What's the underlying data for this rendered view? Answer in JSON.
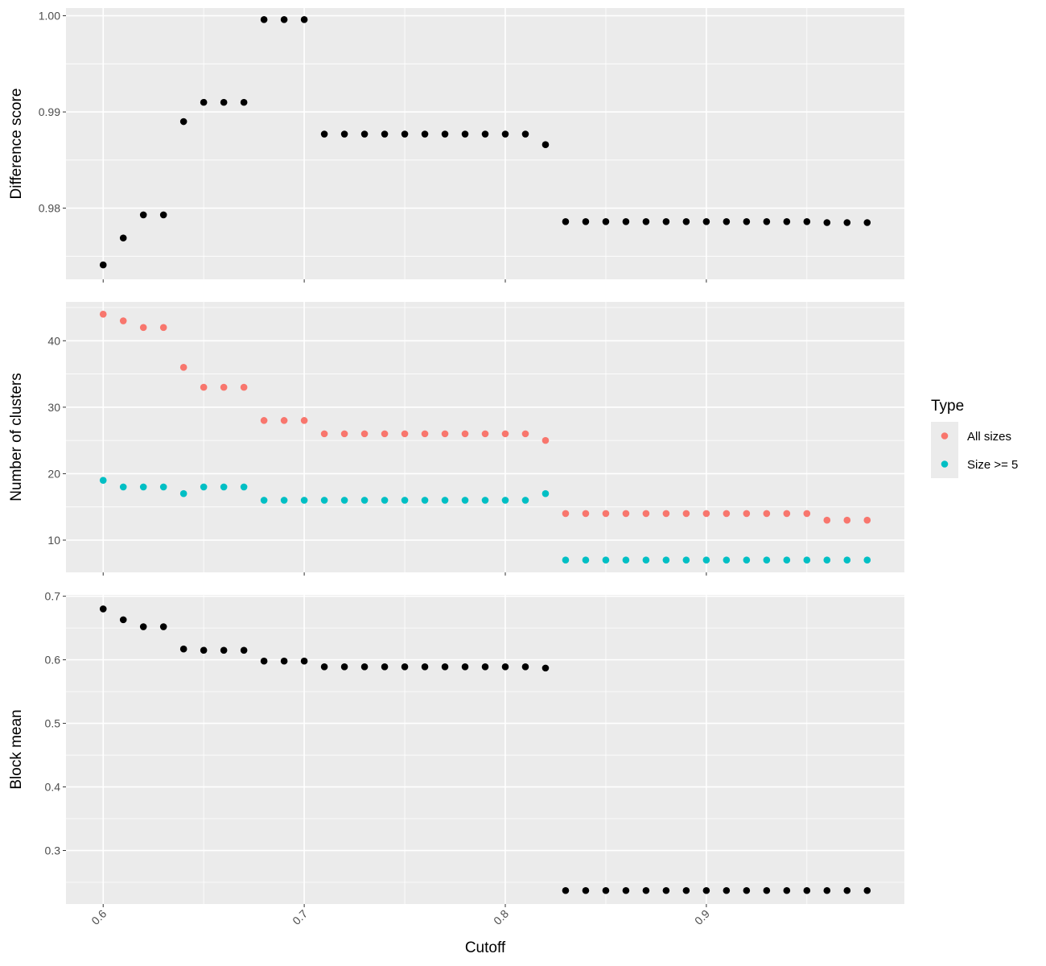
{
  "chart_data": {
    "type": "scatter",
    "xlabel": "Cutoff",
    "x_ticks": [
      0.6,
      0.7,
      0.8,
      0.9
    ],
    "x": [
      0.6,
      0.61,
      0.62,
      0.63,
      0.64,
      0.65,
      0.66,
      0.67,
      0.68,
      0.69,
      0.7,
      0.71,
      0.72,
      0.73,
      0.74,
      0.75,
      0.76,
      0.77,
      0.78,
      0.79,
      0.8,
      0.81,
      0.82,
      0.83,
      0.84,
      0.85,
      0.86,
      0.87,
      0.88,
      0.89,
      0.9,
      0.91,
      0.92,
      0.93,
      0.94,
      0.95,
      0.96,
      0.97,
      0.98
    ],
    "xlim": [
      0.5815,
      0.9985
    ],
    "grid": true,
    "legend": {
      "title": "Type",
      "position": "right",
      "entries": [
        {
          "label": "All sizes",
          "color": "#F8766D"
        },
        {
          "label": "Size >= 5",
          "color": "#00BFC4"
        }
      ]
    },
    "panels": [
      {
        "ylabel": "Difference score",
        "y_ticks": [
          0.98,
          0.99,
          1.0
        ],
        "y_tick_labels": [
          "0.98",
          "0.99",
          "1.00"
        ],
        "ylim": [
          0.9726,
          1.0008
        ],
        "series": [
          {
            "color": "#000000",
            "values": [
              0.9741,
              0.9769,
              0.9793,
              0.9793,
              0.989,
              0.991,
              0.991,
              0.991,
              0.9996,
              0.9996,
              0.9996,
              0.9877,
              0.9877,
              0.9877,
              0.9877,
              0.9877,
              0.9877,
              0.9877,
              0.9877,
              0.9877,
              0.9877,
              0.9877,
              0.9866,
              0.9786,
              0.9786,
              0.9786,
              0.9786,
              0.9786,
              0.9786,
              0.9786,
              0.9786,
              0.9786,
              0.9786,
              0.9786,
              0.9786,
              0.9786,
              0.9785,
              0.9785,
              0.9785
            ]
          }
        ]
      },
      {
        "ylabel": "Number of clusters",
        "y_ticks": [
          10,
          20,
          30,
          40
        ],
        "y_tick_labels": [
          "10",
          "20",
          "30",
          "40"
        ],
        "ylim": [
          5.15,
          45.85
        ],
        "series": [
          {
            "name": "All sizes",
            "color": "#F8766D",
            "values": [
              44,
              43,
              42,
              42,
              36,
              33,
              33,
              33,
              28,
              28,
              28,
              26,
              26,
              26,
              26,
              26,
              26,
              26,
              26,
              26,
              26,
              26,
              25,
              14,
              14,
              14,
              14,
              14,
              14,
              14,
              14,
              14,
              14,
              14,
              14,
              14,
              13,
              13,
              13
            ]
          },
          {
            "name": "Size >= 5",
            "color": "#00BFC4",
            "values": [
              19,
              18,
              18,
              18,
              17,
              18,
              18,
              18,
              16,
              16,
              16,
              16,
              16,
              16,
              16,
              16,
              16,
              16,
              16,
              16,
              16,
              16,
              17,
              7,
              7,
              7,
              7,
              7,
              7,
              7,
              7,
              7,
              7,
              7,
              7,
              7,
              7,
              7,
              7
            ]
          }
        ]
      },
      {
        "ylabel": "Block mean",
        "y_ticks": [
          0.3,
          0.4,
          0.5,
          0.6,
          0.7
        ],
        "y_tick_labels": [
          "0.3",
          "0.4",
          "0.5",
          "0.6",
          "0.7"
        ],
        "ylim": [
          0.2158,
          0.7021
        ],
        "series": [
          {
            "color": "#000000",
            "values": [
              0.68,
              0.663,
              0.652,
              0.652,
              0.617,
              0.615,
              0.615,
              0.615,
              0.598,
              0.598,
              0.598,
              0.589,
              0.589,
              0.589,
              0.589,
              0.589,
              0.589,
              0.589,
              0.589,
              0.589,
              0.589,
              0.589,
              0.587,
              0.237,
              0.237,
              0.237,
              0.237,
              0.237,
              0.237,
              0.237,
              0.237,
              0.237,
              0.237,
              0.237,
              0.237,
              0.237,
              0.237,
              0.237,
              0.237
            ]
          }
        ]
      }
    ]
  }
}
